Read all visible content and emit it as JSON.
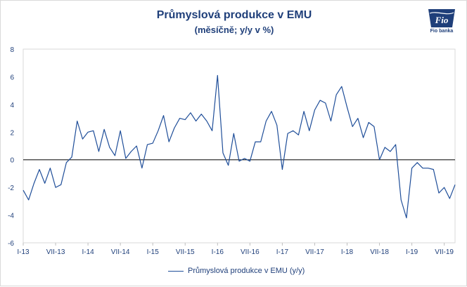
{
  "header": {
    "title": "Průmyslová produkce v EMU",
    "subtitle": "(měsíčně; y/y v %)",
    "logo_text": "Fio banka",
    "logo_mark": "Fio"
  },
  "colors": {
    "line": "#1f4e99",
    "text": "#1f3f7a",
    "axis": "#000000",
    "border": "#d9d9d9"
  },
  "chart_data": {
    "type": "line",
    "title": "Průmyslová produkce v EMU",
    "subtitle": "(měsíčně; y/y v %)",
    "ylim": [
      -6,
      8
    ],
    "yticks": [
      8,
      6,
      4,
      2,
      0,
      -2,
      -4,
      -6
    ],
    "x_tick_labels": [
      "I-13",
      "VII-13",
      "I-14",
      "VII-14",
      "I-15",
      "VII-15",
      "I-16",
      "VII-16",
      "I-17",
      "VII-17",
      "I-18",
      "VII-18",
      "I-19",
      "VII-19"
    ],
    "x_tick_month_index": [
      0,
      6,
      12,
      18,
      24,
      30,
      36,
      42,
      48,
      54,
      60,
      66,
      72,
      78
    ],
    "grid": false,
    "legend_position": "bottom",
    "series": [
      {
        "name": "Průmyslová produkce v EMU (y/y)",
        "x": [
          "I-13",
          "II-13",
          "III-13",
          "IV-13",
          "V-13",
          "VI-13",
          "VII-13",
          "VIII-13",
          "IX-13",
          "X-13",
          "XI-13",
          "XII-13",
          "I-14",
          "II-14",
          "III-14",
          "IV-14",
          "V-14",
          "VI-14",
          "VII-14",
          "VIII-14",
          "IX-14",
          "X-14",
          "XI-14",
          "XII-14",
          "I-15",
          "II-15",
          "III-15",
          "IV-15",
          "V-15",
          "VI-15",
          "VII-15",
          "VIII-15",
          "IX-15",
          "X-15",
          "XI-15",
          "XII-15",
          "I-16",
          "II-16",
          "III-16",
          "IV-16",
          "V-16",
          "VI-16",
          "VII-16",
          "VIII-16",
          "IX-16",
          "X-16",
          "XI-16",
          "XII-16",
          "I-17",
          "II-17",
          "III-17",
          "IV-17",
          "V-17",
          "VI-17",
          "VII-17",
          "VIII-17",
          "IX-17",
          "X-17",
          "XI-17",
          "XII-17",
          "I-18",
          "II-18",
          "III-18",
          "IV-18",
          "V-18",
          "VI-18",
          "VII-18",
          "VIII-18",
          "IX-18",
          "X-18",
          "XI-18",
          "XII-18",
          "I-19",
          "II-19",
          "III-19",
          "IV-19",
          "V-19",
          "VI-19",
          "VII-19",
          "VIII-19",
          "IX-19"
        ],
        "values": [
          -2.2,
          -2.9,
          -1.7,
          -0.7,
          -1.7,
          -0.6,
          -2.0,
          -1.8,
          -0.2,
          0.2,
          2.8,
          1.5,
          2.0,
          2.1,
          0.6,
          2.2,
          0.9,
          0.3,
          2.1,
          0.1,
          0.6,
          1.0,
          -0.6,
          1.1,
          1.2,
          2.1,
          3.2,
          1.3,
          2.3,
          3.0,
          2.9,
          3.4,
          2.8,
          3.3,
          2.8,
          2.1,
          6.1,
          0.5,
          -0.4,
          1.9,
          -0.1,
          0.1,
          -0.1,
          1.3,
          1.3,
          2.8,
          3.5,
          2.5,
          -0.7,
          1.9,
          2.1,
          1.8,
          3.5,
          2.1,
          3.6,
          4.3,
          4.1,
          2.8,
          4.7,
          5.3,
          3.8,
          2.4,
          3.0,
          1.6,
          2.7,
          2.4,
          0.0,
          0.9,
          0.6,
          1.1,
          -2.9,
          -4.2,
          -0.6,
          -0.2,
          -0.6,
          -0.6,
          -0.7,
          -2.4,
          -2.0,
          -2.8,
          -1.8
        ]
      }
    ]
  },
  "legend": {
    "label": "Průmyslová produkce v EMU (y/y)"
  }
}
